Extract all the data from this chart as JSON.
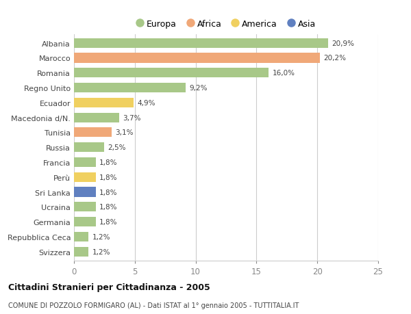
{
  "categories": [
    "Albania",
    "Marocco",
    "Romania",
    "Regno Unito",
    "Ecuador",
    "Macedonia d/N.",
    "Tunisia",
    "Russia",
    "Francia",
    "Perù",
    "Sri Lanka",
    "Ucraina",
    "Germania",
    "Repubblica Ceca",
    "Svizzera"
  ],
  "values": [
    20.9,
    20.2,
    16.0,
    9.2,
    4.9,
    3.7,
    3.1,
    2.5,
    1.8,
    1.8,
    1.8,
    1.8,
    1.8,
    1.2,
    1.2
  ],
  "labels": [
    "20,9%",
    "20,2%",
    "16,0%",
    "9,2%",
    "4,9%",
    "3,7%",
    "3,1%",
    "2,5%",
    "1,8%",
    "1,8%",
    "1,8%",
    "1,8%",
    "1,8%",
    "1,2%",
    "1,2%"
  ],
  "continents": [
    "Europa",
    "Africa",
    "Europa",
    "Europa",
    "America",
    "Europa",
    "Africa",
    "Europa",
    "Europa",
    "America",
    "Asia",
    "Europa",
    "Europa",
    "Europa",
    "Europa"
  ],
  "colors": {
    "Europa": "#a8c888",
    "Africa": "#f0a878",
    "America": "#f0d060",
    "Asia": "#6080c0"
  },
  "legend_order": [
    "Europa",
    "Africa",
    "America",
    "Asia"
  ],
  "title": "Cittadini Stranieri per Cittadinanza - 2005",
  "subtitle": "COMUNE DI POZZOLO FORMIGARO (AL) - Dati ISTAT al 1° gennaio 2005 - TUTTITALIA.IT",
  "xlim": [
    0,
    25
  ],
  "xticks": [
    0,
    5,
    10,
    15,
    20,
    25
  ],
  "background_color": "#ffffff",
  "bar_height": 0.65,
  "grid_color": "#cccccc"
}
